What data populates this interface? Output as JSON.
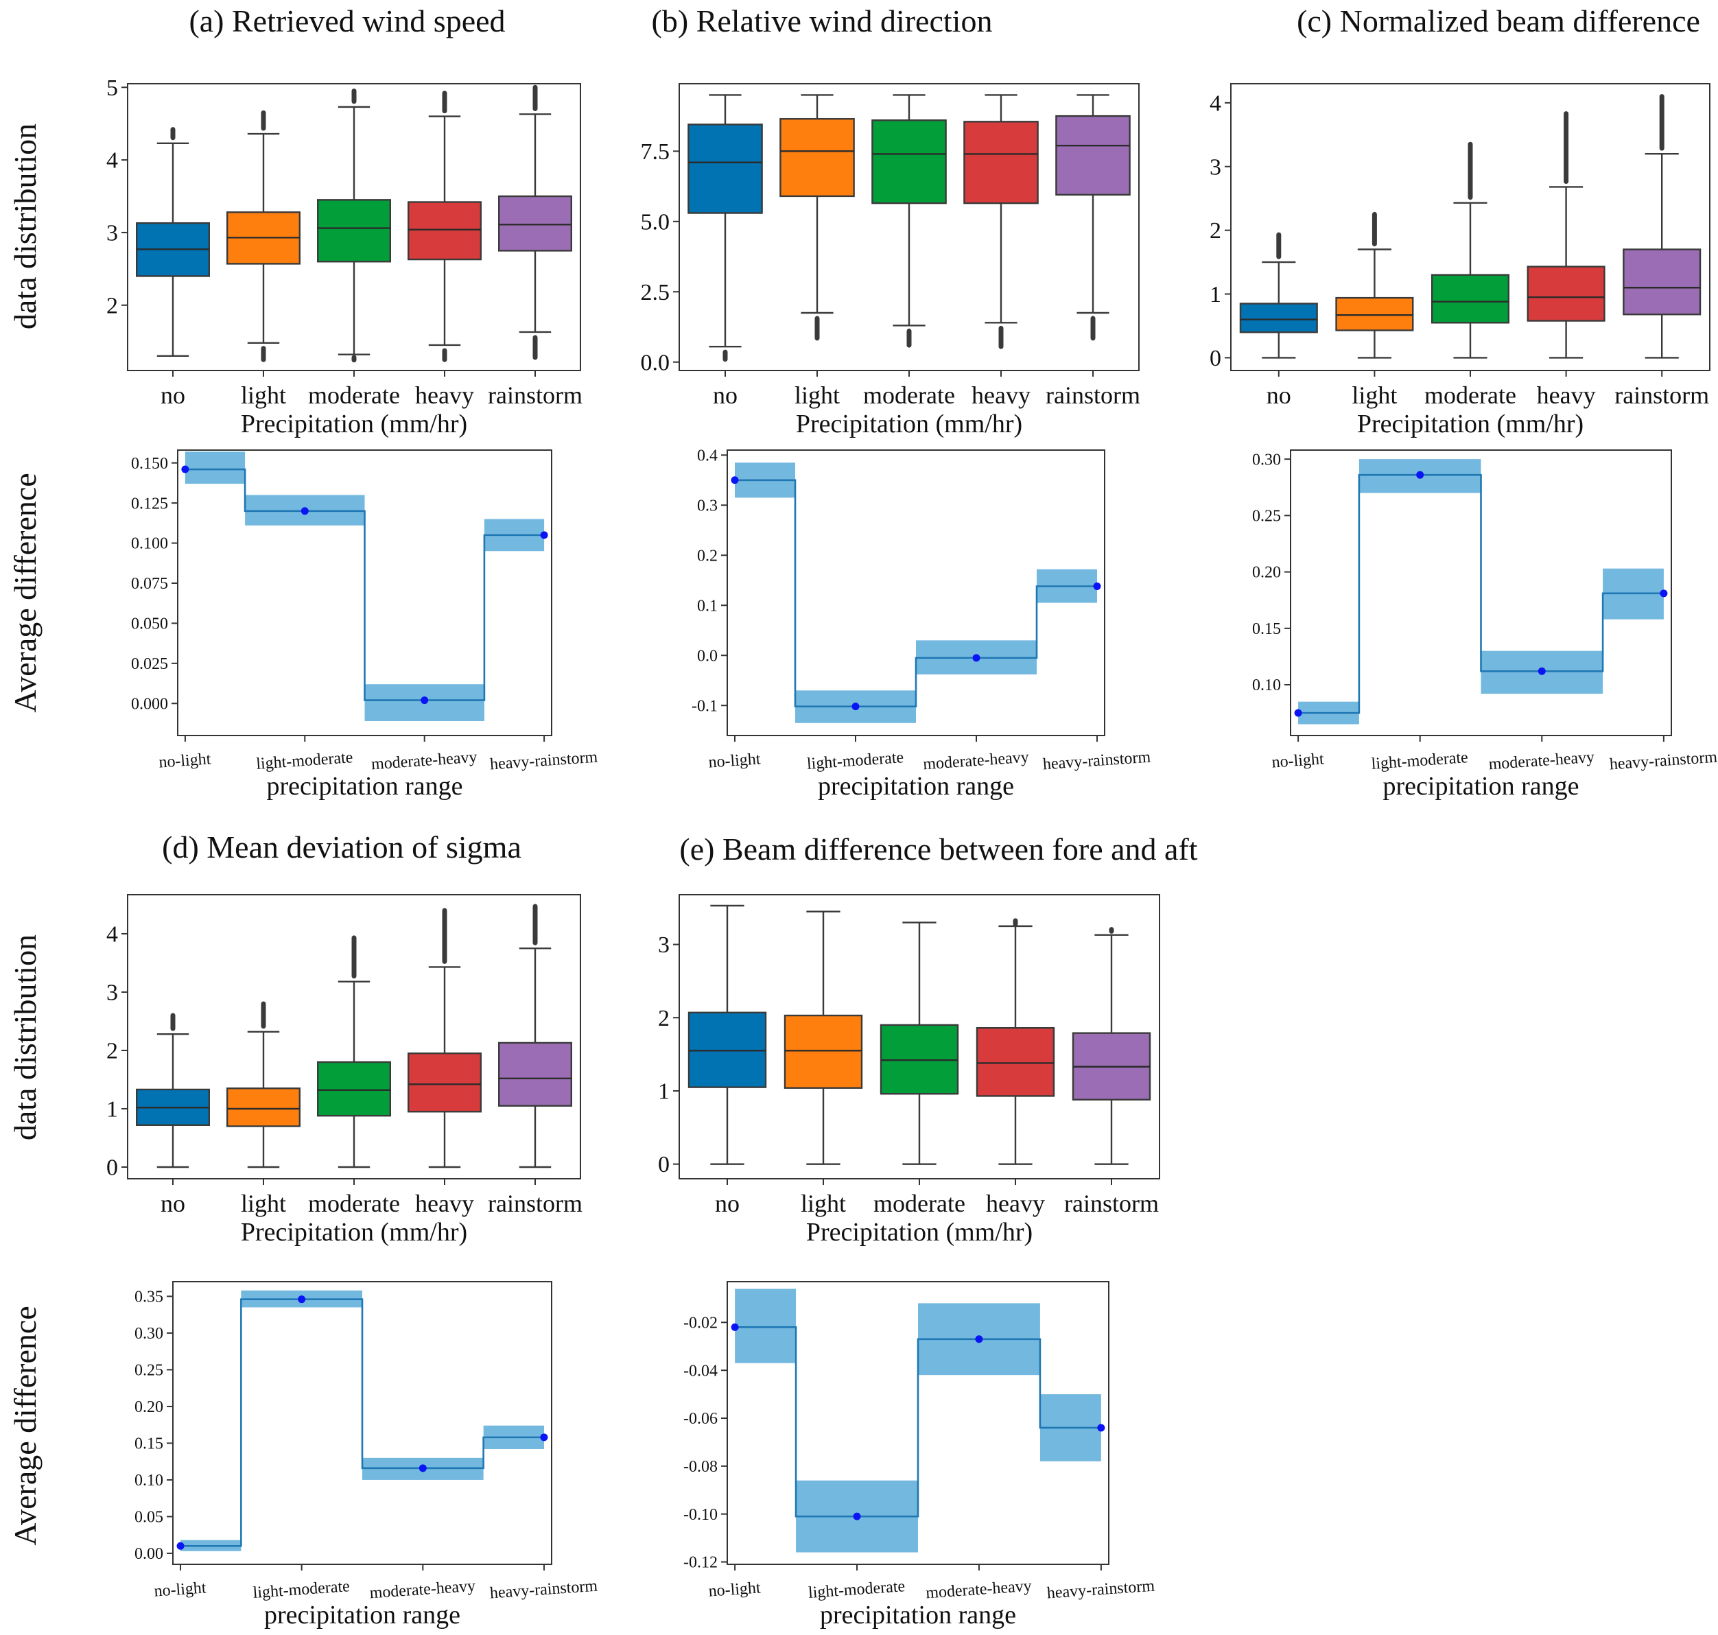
{
  "figure": {
    "row_ylabel_top": "data distribution",
    "row_ylabel_bottom": "Average difference",
    "box_xlabel": "Precipitation  (mm/hr)",
    "step_xlabel": "precipitation range",
    "categories": [
      "no",
      "light",
      "moderate",
      "heavy",
      "rainstorm"
    ],
    "ranges": [
      "no-light",
      "light-moderate",
      "moderate-heavy",
      "heavy-rainstorm"
    ]
  },
  "colors": {
    "no": "#0173b2",
    "light": "#ff7f0e",
    "moderate": "#029e3a",
    "heavy": "#d83b3b",
    "rainstorm": "#9b6db5",
    "step_line": "#1f77b4",
    "step_band": "#6cb4dd",
    "point": "#0a14f5",
    "axis": "#333333"
  },
  "chart_data": [
    {
      "id": "a-box",
      "type": "box",
      "title": "(a) Retrieved wind speed",
      "ylabel": "data distribution",
      "xlabel": "Precipitation  (mm/hr)",
      "categories": [
        "no",
        "light",
        "moderate",
        "heavy",
        "rainstorm"
      ],
      "ylim": [
        1.1,
        5.05
      ],
      "yticks": [
        2,
        3,
        4,
        5
      ],
      "ytick_labels": [
        "2",
        "3",
        "4",
        "5"
      ],
      "boxes": [
        {
          "q1": 2.4,
          "median": 2.77,
          "q3": 3.13,
          "whisker_low": 1.3,
          "whisker_high": 4.23,
          "outlier_high": 4.42,
          "outlier_low": null
        },
        {
          "q1": 2.57,
          "median": 2.93,
          "q3": 3.28,
          "whisker_low": 1.48,
          "whisker_high": 4.36,
          "outlier_high": 4.65,
          "outlier_low": 1.25
        },
        {
          "q1": 2.6,
          "median": 3.06,
          "q3": 3.45,
          "whisker_low": 1.32,
          "whisker_high": 4.73,
          "outlier_high": 4.95,
          "outlier_low": 1.28
        },
        {
          "q1": 2.63,
          "median": 3.04,
          "q3": 3.42,
          "whisker_low": 1.45,
          "whisker_high": 4.6,
          "outlier_high": 4.92,
          "outlier_low": 1.25
        },
        {
          "q1": 2.75,
          "median": 3.11,
          "q3": 3.5,
          "whisker_low": 1.63,
          "whisker_high": 4.63,
          "outlier_high": 5.0,
          "outlier_low": 1.28
        }
      ]
    },
    {
      "id": "b-box",
      "type": "box",
      "title": "(b) Relative wind direction",
      "ylabel": "",
      "xlabel": "Precipitation  (mm/hr)",
      "categories": [
        "no",
        "light",
        "moderate",
        "heavy",
        "rainstorm"
      ],
      "ylim": [
        -0.3,
        9.9
      ],
      "yticks": [
        0,
        2.5,
        5,
        7.5
      ],
      "ytick_labels": [
        "0.0",
        "2.5",
        "5.0",
        "7.5"
      ],
      "boxes": [
        {
          "q1": 5.3,
          "median": 7.1,
          "q3": 8.45,
          "whisker_low": 0.55,
          "whisker_high": 9.5,
          "outlier_high": null,
          "outlier_low": 0.1
        },
        {
          "q1": 5.9,
          "median": 7.5,
          "q3": 8.65,
          "whisker_low": 1.75,
          "whisker_high": 9.5,
          "outlier_high": null,
          "outlier_low": 0.85
        },
        {
          "q1": 5.65,
          "median": 7.4,
          "q3": 8.6,
          "whisker_low": 1.3,
          "whisker_high": 9.5,
          "outlier_high": null,
          "outlier_low": 0.6
        },
        {
          "q1": 5.65,
          "median": 7.4,
          "q3": 8.55,
          "whisker_low": 1.4,
          "whisker_high": 9.5,
          "outlier_high": null,
          "outlier_low": 0.55
        },
        {
          "q1": 5.95,
          "median": 7.7,
          "q3": 8.75,
          "whisker_low": 1.75,
          "whisker_high": 9.5,
          "outlier_high": null,
          "outlier_low": 0.85
        }
      ]
    },
    {
      "id": "c-box",
      "type": "box",
      "title": "(c) Normalized beam difference",
      "ylabel": "",
      "xlabel": "Precipitation  (mm/hr)",
      "categories": [
        "no",
        "light",
        "moderate",
        "heavy",
        "rainstorm"
      ],
      "ylim": [
        -0.2,
        4.3
      ],
      "yticks": [
        0,
        1,
        2,
        3,
        4
      ],
      "ytick_labels": [
        "0",
        "1",
        "2",
        "3",
        "4"
      ],
      "boxes": [
        {
          "q1": 0.4,
          "median": 0.6,
          "q3": 0.85,
          "whisker_low": 0.0,
          "whisker_high": 1.5,
          "outlier_high": 1.93,
          "outlier_low": null
        },
        {
          "q1": 0.43,
          "median": 0.67,
          "q3": 0.94,
          "whisker_low": 0.0,
          "whisker_high": 1.7,
          "outlier_high": 2.25,
          "outlier_low": null
        },
        {
          "q1": 0.55,
          "median": 0.88,
          "q3": 1.3,
          "whisker_low": 0.0,
          "whisker_high": 2.43,
          "outlier_high": 3.35,
          "outlier_low": null
        },
        {
          "q1": 0.58,
          "median": 0.95,
          "q3": 1.43,
          "whisker_low": 0.0,
          "whisker_high": 2.68,
          "outlier_high": 3.83,
          "outlier_low": null
        },
        {
          "q1": 0.68,
          "median": 1.1,
          "q3": 1.7,
          "whisker_low": 0.0,
          "whisker_high": 3.2,
          "outlier_high": 4.1,
          "outlier_low": null
        }
      ]
    },
    {
      "id": "d-box",
      "type": "box",
      "title": "(d) Mean deviation of sigma",
      "ylabel": "data distribution",
      "xlabel": "Precipitation  (mm/hr)",
      "categories": [
        "no",
        "light",
        "moderate",
        "heavy",
        "rainstorm"
      ],
      "ylim": [
        -0.2,
        4.67
      ],
      "yticks": [
        0,
        1,
        2,
        3,
        4
      ],
      "ytick_labels": [
        "0",
        "1",
        "2",
        "3",
        "4"
      ],
      "boxes": [
        {
          "q1": 0.72,
          "median": 1.02,
          "q3": 1.33,
          "whisker_low": 0.0,
          "whisker_high": 2.28,
          "outlier_high": 2.6,
          "outlier_low": null
        },
        {
          "q1": 0.7,
          "median": 1.0,
          "q3": 1.35,
          "whisker_low": 0.0,
          "whisker_high": 2.32,
          "outlier_high": 2.8,
          "outlier_low": null
        },
        {
          "q1": 0.88,
          "median": 1.32,
          "q3": 1.8,
          "whisker_low": 0.0,
          "whisker_high": 3.18,
          "outlier_high": 3.93,
          "outlier_low": null
        },
        {
          "q1": 0.95,
          "median": 1.42,
          "q3": 1.95,
          "whisker_low": 0.0,
          "whisker_high": 3.43,
          "outlier_high": 4.4,
          "outlier_low": null
        },
        {
          "q1": 1.05,
          "median": 1.52,
          "q3": 2.13,
          "whisker_low": 0.0,
          "whisker_high": 3.75,
          "outlier_high": 4.47,
          "outlier_low": null
        }
      ]
    },
    {
      "id": "e-box",
      "type": "box",
      "title": "(e) Beam difference between fore and aft",
      "ylabel": "",
      "xlabel": "Precipitation  (mm/hr)",
      "categories": [
        "no",
        "light",
        "moderate",
        "heavy",
        "rainstorm"
      ],
      "ylim": [
        -0.2,
        3.68
      ],
      "yticks": [
        0,
        1,
        2,
        3
      ],
      "ytick_labels": [
        "0",
        "1",
        "2",
        "3"
      ],
      "boxes": [
        {
          "q1": 1.05,
          "median": 1.55,
          "q3": 2.07,
          "whisker_low": 0.0,
          "whisker_high": 3.53,
          "outlier_high": null,
          "outlier_low": null
        },
        {
          "q1": 1.04,
          "median": 1.55,
          "q3": 2.03,
          "whisker_low": 0.0,
          "whisker_high": 3.45,
          "outlier_high": null,
          "outlier_low": null
        },
        {
          "q1": 0.96,
          "median": 1.42,
          "q3": 1.9,
          "whisker_low": 0.0,
          "whisker_high": 3.3,
          "outlier_high": null,
          "outlier_low": null
        },
        {
          "q1": 0.93,
          "median": 1.38,
          "q3": 1.86,
          "whisker_low": 0.0,
          "whisker_high": 3.25,
          "outlier_high": 3.28,
          "outlier_low": null
        },
        {
          "q1": 0.88,
          "median": 1.33,
          "q3": 1.79,
          "whisker_low": 0.0,
          "whisker_high": 3.13,
          "outlier_high": 3.18,
          "outlier_low": null
        }
      ]
    },
    {
      "id": "a-step",
      "type": "step",
      "ylabel": "Average difference",
      "xlabel": "precipitation range",
      "categories": [
        "no-light",
        "light-moderate",
        "moderate-heavy",
        "heavy-rainstorm"
      ],
      "ylim": [
        -0.02,
        0.158
      ],
      "yticks": [
        0,
        0.025,
        0.05,
        0.075,
        0.1,
        0.125,
        0.15
      ],
      "ytick_labels": [
        "0.000",
        "0.025",
        "0.050",
        "0.075",
        "0.100",
        "0.125",
        "0.150"
      ],
      "values": [
        0.146,
        0.12,
        0.002,
        0.105
      ],
      "band_low": [
        0.137,
        0.111,
        -0.011,
        0.095
      ],
      "band_high": [
        0.157,
        0.13,
        0.012,
        0.115
      ]
    },
    {
      "id": "b-step",
      "type": "step",
      "ylabel": "",
      "xlabel": "precipitation range",
      "categories": [
        "no-light",
        "light-moderate",
        "moderate-heavy",
        "heavy-rainstorm"
      ],
      "ylim": [
        -0.16,
        0.41
      ],
      "yticks": [
        -0.1,
        0,
        0.1,
        0.2,
        0.3,
        0.4
      ],
      "ytick_labels": [
        "-0.1",
        "0.0",
        "0.1",
        "0.2",
        "0.3",
        "0.4"
      ],
      "values": [
        0.35,
        -0.102,
        -0.005,
        0.138
      ],
      "band_low": [
        0.315,
        -0.135,
        -0.038,
        0.105
      ],
      "band_high": [
        0.385,
        -0.07,
        0.03,
        0.172
      ]
    },
    {
      "id": "c-step",
      "type": "step",
      "ylabel": "",
      "xlabel": "precipitation range",
      "categories": [
        "no-light",
        "light-moderate",
        "moderate-heavy",
        "heavy-rainstorm"
      ],
      "ylim": [
        0.055,
        0.308
      ],
      "yticks": [
        0.1,
        0.15,
        0.2,
        0.25,
        0.3
      ],
      "ytick_labels": [
        "0.10",
        "0.15",
        "0.20",
        "0.25",
        "0.30"
      ],
      "values": [
        0.075,
        0.286,
        0.112,
        0.181
      ],
      "band_low": [
        0.065,
        0.27,
        0.092,
        0.158
      ],
      "band_high": [
        0.085,
        0.3,
        0.13,
        0.203
      ]
    },
    {
      "id": "d-step",
      "type": "step",
      "ylabel": "Average difference",
      "xlabel": "precipitation range",
      "categories": [
        "no-light",
        "light-moderate",
        "moderate-heavy",
        "heavy-rainstorm"
      ],
      "ylim": [
        -0.015,
        0.37
      ],
      "yticks": [
        0,
        0.05,
        0.1,
        0.15,
        0.2,
        0.25,
        0.3,
        0.35
      ],
      "ytick_labels": [
        "0.00",
        "0.05",
        "0.10",
        "0.15",
        "0.20",
        "0.25",
        "0.30",
        "0.35"
      ],
      "values": [
        0.01,
        0.346,
        0.116,
        0.158
      ],
      "band_low": [
        0.003,
        0.335,
        0.1,
        0.142
      ],
      "band_high": [
        0.018,
        0.358,
        0.13,
        0.174
      ]
    },
    {
      "id": "e-step",
      "type": "step",
      "ylabel": "",
      "xlabel": "precipitation range",
      "categories": [
        "no-light",
        "light-moderate",
        "moderate-heavy",
        "heavy-rainstorm"
      ],
      "ylim": [
        -0.121,
        -0.003
      ],
      "yticks": [
        -0.12,
        -0.1,
        -0.08,
        -0.06,
        -0.04,
        -0.02
      ],
      "ytick_labels": [
        "-0.12",
        "-0.10",
        "-0.08",
        "-0.06",
        "-0.04",
        "-0.02"
      ],
      "values": [
        -0.022,
        -0.101,
        -0.027,
        -0.064
      ],
      "band_low": [
        -0.037,
        -0.116,
        -0.042,
        -0.078
      ],
      "band_high": [
        -0.006,
        -0.086,
        -0.012,
        -0.05
      ]
    }
  ]
}
